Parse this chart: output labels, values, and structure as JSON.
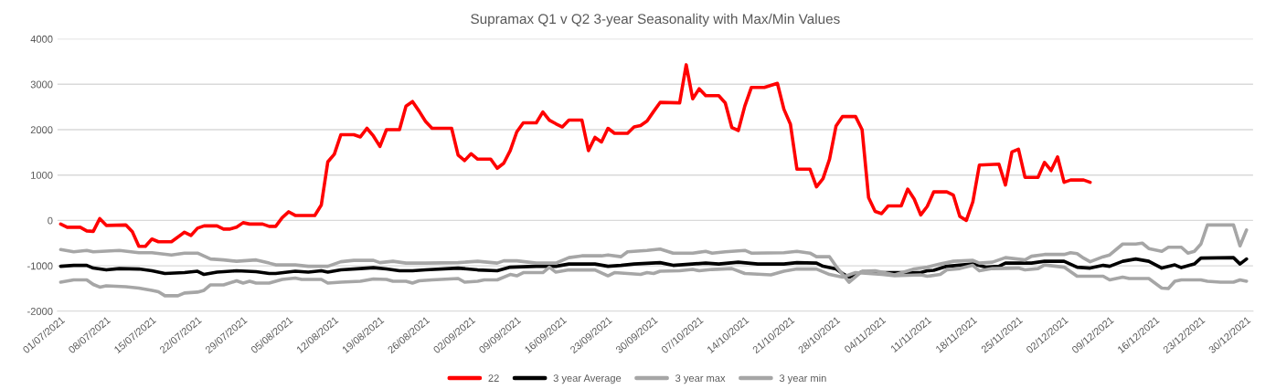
{
  "chart_data": {
    "type": "line",
    "title": "Supramax Q1 v Q2 3-year Seasonality with Max/Min Values",
    "xlim": [
      "2021-06-30T12:00",
      "2021-12-31"
    ],
    "xticks": [
      {
        "value": "2021-07-01",
        "label": "01/07/2021"
      },
      {
        "value": "2021-07-08",
        "label": "08/07/2021"
      },
      {
        "value": "2021-07-15",
        "label": "15/07/2021"
      },
      {
        "value": "2021-07-22",
        "label": "22/07/2021"
      },
      {
        "value": "2021-07-29",
        "label": "29/07/2021"
      },
      {
        "value": "2021-08-05",
        "label": "05/08/2021"
      },
      {
        "value": "2021-08-12",
        "label": "12/08/2021"
      },
      {
        "value": "2021-08-19",
        "label": "19/08/2021"
      },
      {
        "value": "2021-08-26",
        "label": "26/08/2021"
      },
      {
        "value": "2021-09-02",
        "label": "02/09/2021"
      },
      {
        "value": "2021-09-09",
        "label": "09/09/2021"
      },
      {
        "value": "2021-09-16",
        "label": "16/09/2021"
      },
      {
        "value": "2021-09-23",
        "label": "23/09/2021"
      },
      {
        "value": "2021-09-30",
        "label": "30/09/2021"
      },
      {
        "value": "2021-10-07",
        "label": "07/10/2021"
      },
      {
        "value": "2021-10-14",
        "label": "14/10/2021"
      },
      {
        "value": "2021-10-21",
        "label": "21/10/2021"
      },
      {
        "value": "2021-10-28",
        "label": "28/10/2021"
      },
      {
        "value": "2021-11-04",
        "label": "04/11/2021"
      },
      {
        "value": "2021-11-11",
        "label": "11/11/2021"
      },
      {
        "value": "2021-11-18",
        "label": "18/11/2021"
      },
      {
        "value": "2021-11-25",
        "label": "25/11/2021"
      },
      {
        "value": "2021-12-02",
        "label": "02/12/2021"
      },
      {
        "value": "2021-12-09",
        "label": "09/12/2021"
      },
      {
        "value": "2021-12-16",
        "label": "16/12/2021"
      },
      {
        "value": "2021-12-23",
        "label": "23/12/2021"
      },
      {
        "value": "2021-12-30",
        "label": "30/12/2021"
      }
    ],
    "ylim": [
      -2000,
      4000
    ],
    "yticks": [
      -2000,
      -1000,
      0,
      1000,
      2000,
      3000,
      4000
    ],
    "grid": "y",
    "legend": "bottom",
    "marker": "none",
    "line_style": "solid",
    "series": [
      {
        "name": "22",
        "color": "#ff0000",
        "x": [
          "2021-07-01",
          "2021-07-02",
          "2021-07-04",
          "2021-07-05",
          "2021-07-06",
          "2021-07-07",
          "2021-07-08",
          "2021-07-11",
          "2021-07-12",
          "2021-07-13",
          "2021-07-14",
          "2021-07-15",
          "2021-07-16",
          "2021-07-18",
          "2021-07-20",
          "2021-07-21",
          "2021-07-22",
          "2021-07-23",
          "2021-07-25",
          "2021-07-26",
          "2021-07-27",
          "2021-07-28",
          "2021-07-29",
          "2021-07-30",
          "2021-08-01",
          "2021-08-02",
          "2021-08-03",
          "2021-08-04",
          "2021-08-05",
          "2021-08-06",
          "2021-08-09",
          "2021-08-10",
          "2021-08-11",
          "2021-08-12",
          "2021-08-13",
          "2021-08-15",
          "2021-08-16",
          "2021-08-17",
          "2021-08-18",
          "2021-08-19",
          "2021-08-20",
          "2021-08-22",
          "2021-08-23",
          "2021-08-24",
          "2021-08-25",
          "2021-08-26",
          "2021-08-27",
          "2021-08-30",
          "2021-08-31",
          "2021-09-01",
          "2021-09-02",
          "2021-09-03",
          "2021-09-05",
          "2021-09-06",
          "2021-09-07",
          "2021-09-08",
          "2021-09-09",
          "2021-09-10",
          "2021-09-12",
          "2021-09-13",
          "2021-09-14",
          "2021-09-15",
          "2021-09-16",
          "2021-09-17",
          "2021-09-19",
          "2021-09-20",
          "2021-09-21",
          "2021-09-22",
          "2021-09-23",
          "2021-09-24",
          "2021-09-26",
          "2021-09-27",
          "2021-09-28",
          "2021-09-29",
          "2021-09-30",
          "2021-10-01",
          "2021-10-04",
          "2021-10-05",
          "2021-10-06",
          "2021-10-07",
          "2021-10-08",
          "2021-10-10",
          "2021-10-11",
          "2021-10-12",
          "2021-10-13",
          "2021-10-14",
          "2021-10-15",
          "2021-10-17",
          "2021-10-19",
          "2021-10-20",
          "2021-10-21",
          "2021-10-22",
          "2021-10-24",
          "2021-10-25",
          "2021-10-26",
          "2021-10-27",
          "2021-10-28",
          "2021-10-29",
          "2021-10-31",
          "2021-11-01",
          "2021-11-02",
          "2021-11-03",
          "2021-11-04",
          "2021-11-05",
          "2021-11-07",
          "2021-11-08",
          "2021-11-09",
          "2021-11-10",
          "2021-11-11",
          "2021-11-12",
          "2021-11-14",
          "2021-11-15",
          "2021-11-16",
          "2021-11-17",
          "2021-11-18",
          "2021-11-19",
          "2021-11-22",
          "2021-11-23",
          "2021-11-24",
          "2021-11-25",
          "2021-11-26",
          "2021-11-28",
          "2021-11-29",
          "2021-11-30",
          "2021-12-01",
          "2021-12-02",
          "2021-12-03",
          "2021-12-05",
          "2021-12-06"
        ],
        "values": [
          -80,
          -150,
          -150,
          -230,
          -240,
          40,
          -110,
          -100,
          -250,
          -570,
          -570,
          -410,
          -470,
          -470,
          -260,
          -330,
          -170,
          -120,
          -120,
          -190,
          -190,
          -150,
          -50,
          -80,
          -80,
          -130,
          -130,
          60,
          190,
          110,
          110,
          340,
          1290,
          1460,
          1890,
          1890,
          1840,
          2030,
          1860,
          1630,
          2000,
          2000,
          2520,
          2620,
          2410,
          2180,
          2030,
          2030,
          1440,
          1320,
          1470,
          1350,
          1350,
          1150,
          1260,
          1540,
          1950,
          2150,
          2150,
          2390,
          2210,
          2130,
          2060,
          2210,
          2210,
          1540,
          1830,
          1730,
          2030,
          1920,
          1920,
          2060,
          2090,
          2190,
          2400,
          2600,
          2590,
          3430,
          2680,
          2900,
          2750,
          2750,
          2590,
          2050,
          1980,
          2520,
          2930,
          2930,
          3020,
          2450,
          2120,
          1130,
          1130,
          740,
          920,
          1350,
          2080,
          2290,
          2290,
          2000,
          500,
          200,
          150,
          320,
          320,
          690,
          470,
          120,
          310,
          630,
          630,
          560,
          90,
          0,
          410,
          1220,
          1240,
          780,
          1510,
          1570,
          950,
          950,
          1280,
          1100,
          1400,
          840,
          890,
          890,
          840
        ]
      },
      {
        "name": "3 year Average",
        "color": "#000000",
        "x": [
          "2021-07-01",
          "2021-07-03",
          "2021-07-05",
          "2021-07-06",
          "2021-07-08",
          "2021-07-10",
          "2021-07-13",
          "2021-07-15",
          "2021-07-17",
          "2021-07-20",
          "2021-07-22",
          "2021-07-23",
          "2021-07-25",
          "2021-07-28",
          "2021-07-31",
          "2021-08-02",
          "2021-08-03",
          "2021-08-06",
          "2021-08-08",
          "2021-08-10",
          "2021-08-11",
          "2021-08-13",
          "2021-08-16",
          "2021-08-18",
          "2021-08-20",
          "2021-08-22",
          "2021-08-24",
          "2021-08-26",
          "2021-08-31",
          "2021-09-03",
          "2021-09-06",
          "2021-09-08",
          "2021-09-12",
          "2021-09-15",
          "2021-09-17",
          "2021-09-21",
          "2021-09-23",
          "2021-09-25",
          "2021-09-27",
          "2021-10-01",
          "2021-10-03",
          "2021-10-08",
          "2021-10-10",
          "2021-10-13",
          "2021-10-16",
          "2021-10-20",
          "2021-10-22",
          "2021-10-25",
          "2021-10-26",
          "2021-10-28",
          "2021-10-29",
          "2021-10-30",
          "2021-11-01",
          "2021-11-04",
          "2021-11-10",
          "2021-11-11",
          "2021-11-12",
          "2021-11-14",
          "2021-11-18",
          "2021-11-20",
          "2021-11-22",
          "2021-11-23",
          "2021-11-27",
          "2021-11-29",
          "2021-12-02",
          "2021-12-04",
          "2021-12-06",
          "2021-12-08",
          "2021-12-09",
          "2021-12-11",
          "2021-12-13",
          "2021-12-15",
          "2021-12-17",
          "2021-12-19",
          "2021-12-20",
          "2021-12-22",
          "2021-12-23",
          "2021-12-28",
          "2021-12-29",
          "2021-12-30"
        ],
        "values": [
          -1010,
          -990,
          -990,
          -1050,
          -1090,
          -1060,
          -1070,
          -1110,
          -1170,
          -1150,
          -1120,
          -1190,
          -1140,
          -1110,
          -1130,
          -1170,
          -1170,
          -1120,
          -1140,
          -1110,
          -1140,
          -1090,
          -1060,
          -1040,
          -1070,
          -1110,
          -1110,
          -1090,
          -1050,
          -1090,
          -1110,
          -1030,
          -1010,
          -1010,
          -960,
          -960,
          -1010,
          -990,
          -960,
          -930,
          -990,
          -940,
          -960,
          -920,
          -960,
          -960,
          -930,
          -940,
          -1010,
          -1070,
          -1170,
          -1250,
          -1130,
          -1150,
          -1150,
          -1110,
          -1100,
          -1010,
          -960,
          -1030,
          -1010,
          -940,
          -940,
          -900,
          -900,
          -1030,
          -1050,
          -990,
          -1010,
          -900,
          -850,
          -900,
          -1050,
          -980,
          -1040,
          -960,
          -830,
          -820,
          -960,
          -850
        ]
      },
      {
        "name": "3 year max",
        "color": "#a6a6a6",
        "x": [
          "2021-07-01",
          "2021-07-03",
          "2021-07-05",
          "2021-07-06",
          "2021-07-10",
          "2021-07-13",
          "2021-07-15",
          "2021-07-18",
          "2021-07-20",
          "2021-07-22",
          "2021-07-24",
          "2021-07-26",
          "2021-07-28",
          "2021-07-31",
          "2021-08-02",
          "2021-08-03",
          "2021-08-06",
          "2021-08-08",
          "2021-08-11",
          "2021-08-13",
          "2021-08-15",
          "2021-08-18",
          "2021-08-19",
          "2021-08-21",
          "2021-08-23",
          "2021-08-26",
          "2021-08-31",
          "2021-09-03",
          "2021-09-06",
          "2021-09-07",
          "2021-09-09",
          "2021-09-12",
          "2021-09-15",
          "2021-09-17",
          "2021-09-19",
          "2021-09-22",
          "2021-09-23",
          "2021-09-25",
          "2021-09-26",
          "2021-09-29",
          "2021-10-01",
          "2021-10-03",
          "2021-10-06",
          "2021-10-08",
          "2021-10-09",
          "2021-10-11",
          "2021-10-14",
          "2021-10-15",
          "2021-10-20",
          "2021-10-22",
          "2021-10-24",
          "2021-10-25",
          "2021-10-27",
          "2021-10-28",
          "2021-10-30",
          "2021-11-01",
          "2021-11-03",
          "2021-11-06",
          "2021-11-09",
          "2021-11-11",
          "2021-11-13",
          "2021-11-15",
          "2021-11-18",
          "2021-11-19",
          "2021-11-21",
          "2021-11-23",
          "2021-11-26",
          "2021-11-27",
          "2021-11-29",
          "2021-12-02",
          "2021-12-03",
          "2021-12-04",
          "2021-12-05",
          "2021-12-06",
          "2021-12-08",
          "2021-12-09",
          "2021-12-11",
          "2021-12-13",
          "2021-12-14",
          "2021-12-15",
          "2021-12-17",
          "2021-12-18",
          "2021-12-20",
          "2021-12-21",
          "2021-12-22",
          "2021-12-23",
          "2021-12-24",
          "2021-12-28",
          "2021-12-29",
          "2021-12-30"
        ],
        "values": [
          -640,
          -690,
          -660,
          -690,
          -660,
          -710,
          -710,
          -760,
          -720,
          -720,
          -850,
          -870,
          -900,
          -870,
          -940,
          -980,
          -980,
          -1010,
          -1010,
          -910,
          -880,
          -880,
          -930,
          -900,
          -940,
          -940,
          -930,
          -900,
          -940,
          -890,
          -890,
          -940,
          -940,
          -820,
          -780,
          -780,
          -760,
          -800,
          -690,
          -660,
          -630,
          -720,
          -720,
          -680,
          -720,
          -690,
          -660,
          -720,
          -710,
          -680,
          -720,
          -800,
          -800,
          -1010,
          -1360,
          -1120,
          -1110,
          -1200,
          -1070,
          -1030,
          -960,
          -900,
          -880,
          -940,
          -920,
          -820,
          -870,
          -790,
          -750,
          -750,
          -710,
          -730,
          -830,
          -910,
          -800,
          -760,
          -520,
          -520,
          -500,
          -620,
          -680,
          -590,
          -590,
          -720,
          -680,
          -520,
          -100,
          -100,
          -560,
          -210
        ]
      },
      {
        "name": "3 year min",
        "color": "#a6a6a6",
        "x": [
          "2021-07-01",
          "2021-07-03",
          "2021-07-05",
          "2021-07-06",
          "2021-07-07",
          "2021-07-08",
          "2021-07-11",
          "2021-07-13",
          "2021-07-15",
          "2021-07-16",
          "2021-07-17",
          "2021-07-19",
          "2021-07-20",
          "2021-07-22",
          "2021-07-23",
          "2021-07-24",
          "2021-07-26",
          "2021-07-28",
          "2021-07-29",
          "2021-07-30",
          "2021-07-31",
          "2021-08-02",
          "2021-08-04",
          "2021-08-06",
          "2021-08-07",
          "2021-08-10",
          "2021-08-11",
          "2021-08-13",
          "2021-08-16",
          "2021-08-18",
          "2021-08-20",
          "2021-08-21",
          "2021-08-23",
          "2021-08-24",
          "2021-08-25",
          "2021-08-27",
          "2021-08-31",
          "2021-09-01",
          "2021-09-03",
          "2021-09-04",
          "2021-09-06",
          "2021-09-08",
          "2021-09-09",
          "2021-09-10",
          "2021-09-13",
          "2021-09-14",
          "2021-09-15",
          "2021-09-17",
          "2021-09-21",
          "2021-09-23",
          "2021-09-24",
          "2021-09-28",
          "2021-09-29",
          "2021-09-30",
          "2021-10-01",
          "2021-10-04",
          "2021-10-06",
          "2021-10-07",
          "2021-10-09",
          "2021-10-12",
          "2021-10-14",
          "2021-10-18",
          "2021-10-20",
          "2021-10-22",
          "2021-10-25",
          "2021-10-27",
          "2021-10-29",
          "2021-10-31",
          "2021-11-04",
          "2021-11-06",
          "2021-11-10",
          "2021-11-11",
          "2021-11-13",
          "2021-11-14",
          "2021-11-16",
          "2021-11-18",
          "2021-11-19",
          "2021-11-21",
          "2021-11-25",
          "2021-11-26",
          "2021-11-28",
          "2021-11-29",
          "2021-12-02",
          "2021-12-04",
          "2021-12-08",
          "2021-12-09",
          "2021-12-11",
          "2021-12-12",
          "2021-12-15",
          "2021-12-17",
          "2021-12-18",
          "2021-12-19",
          "2021-12-20",
          "2021-12-23",
          "2021-12-24",
          "2021-12-26",
          "2021-12-28",
          "2021-12-29",
          "2021-12-30"
        ],
        "values": [
          -1360,
          -1310,
          -1310,
          -1410,
          -1470,
          -1440,
          -1460,
          -1490,
          -1540,
          -1570,
          -1660,
          -1660,
          -1600,
          -1580,
          -1540,
          -1420,
          -1420,
          -1330,
          -1380,
          -1340,
          -1380,
          -1380,
          -1300,
          -1270,
          -1300,
          -1300,
          -1380,
          -1360,
          -1340,
          -1290,
          -1300,
          -1340,
          -1340,
          -1380,
          -1330,
          -1310,
          -1280,
          -1360,
          -1340,
          -1310,
          -1310,
          -1190,
          -1220,
          -1150,
          -1150,
          -1030,
          -1140,
          -1090,
          -1090,
          -1220,
          -1150,
          -1190,
          -1150,
          -1170,
          -1120,
          -1110,
          -1080,
          -1110,
          -1080,
          -1060,
          -1170,
          -1200,
          -1120,
          -1070,
          -1070,
          -1190,
          -1250,
          -1150,
          -1190,
          -1220,
          -1200,
          -1230,
          -1190,
          -1090,
          -1060,
          -990,
          -1110,
          -1060,
          -1050,
          -1090,
          -1060,
          -980,
          -1030,
          -1230,
          -1230,
          -1310,
          -1250,
          -1280,
          -1280,
          -1490,
          -1500,
          -1340,
          -1310,
          -1310,
          -1340,
          -1360,
          -1360,
          -1310,
          -1340
        ]
      }
    ]
  }
}
